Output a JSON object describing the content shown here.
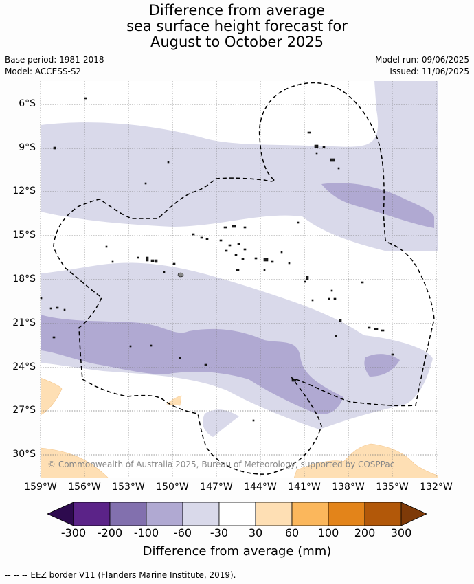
{
  "title": {
    "line1": "Difference from average",
    "line2": "sea surface height forecast for",
    "line3": "August to October 2025"
  },
  "meta": {
    "base_period": "Base period: 1981-2018",
    "model": "Model: ACCESS-S2",
    "model_run": "Model run: 09/06/2025",
    "issued": "Issued: 11/06/2025"
  },
  "axes": {
    "lat_labels": [
      "6°S",
      "9°S",
      "12°S",
      "15°S",
      "18°S",
      "21°S",
      "24°S",
      "27°S",
      "30°S"
    ],
    "lon_labels": [
      "159°W",
      "156°W",
      "153°W",
      "150°W",
      "147°W",
      "144°W",
      "141°W",
      "138°W",
      "135°W",
      "132°W"
    ],
    "grid": "dotted"
  },
  "copyright": "© Commonwealth of Australia 2025, Bureau of Meteorology, supported by COSPPac",
  "colorbar": {
    "labels": [
      "-300",
      "-200",
      "-100",
      "-60",
      "-30",
      "30",
      "60",
      "100",
      "200",
      "300"
    ],
    "title": "Difference from average (mm)",
    "colors": {
      "below": "#2d0a4e",
      "c1": "#5b2388",
      "c2": "#8270ae",
      "c3": "#b0a9d2",
      "c4": "#d9d9ea",
      "c5": "#ffffff",
      "c6": "#fedfb4",
      "c7": "#fbb75c",
      "c8": "#e3841a",
      "c9": "#b25809",
      "above": "#7e3a08"
    }
  },
  "footer": "--  --  -- EEZ border V11 (Flanders Marine Institute, 2019)."
}
